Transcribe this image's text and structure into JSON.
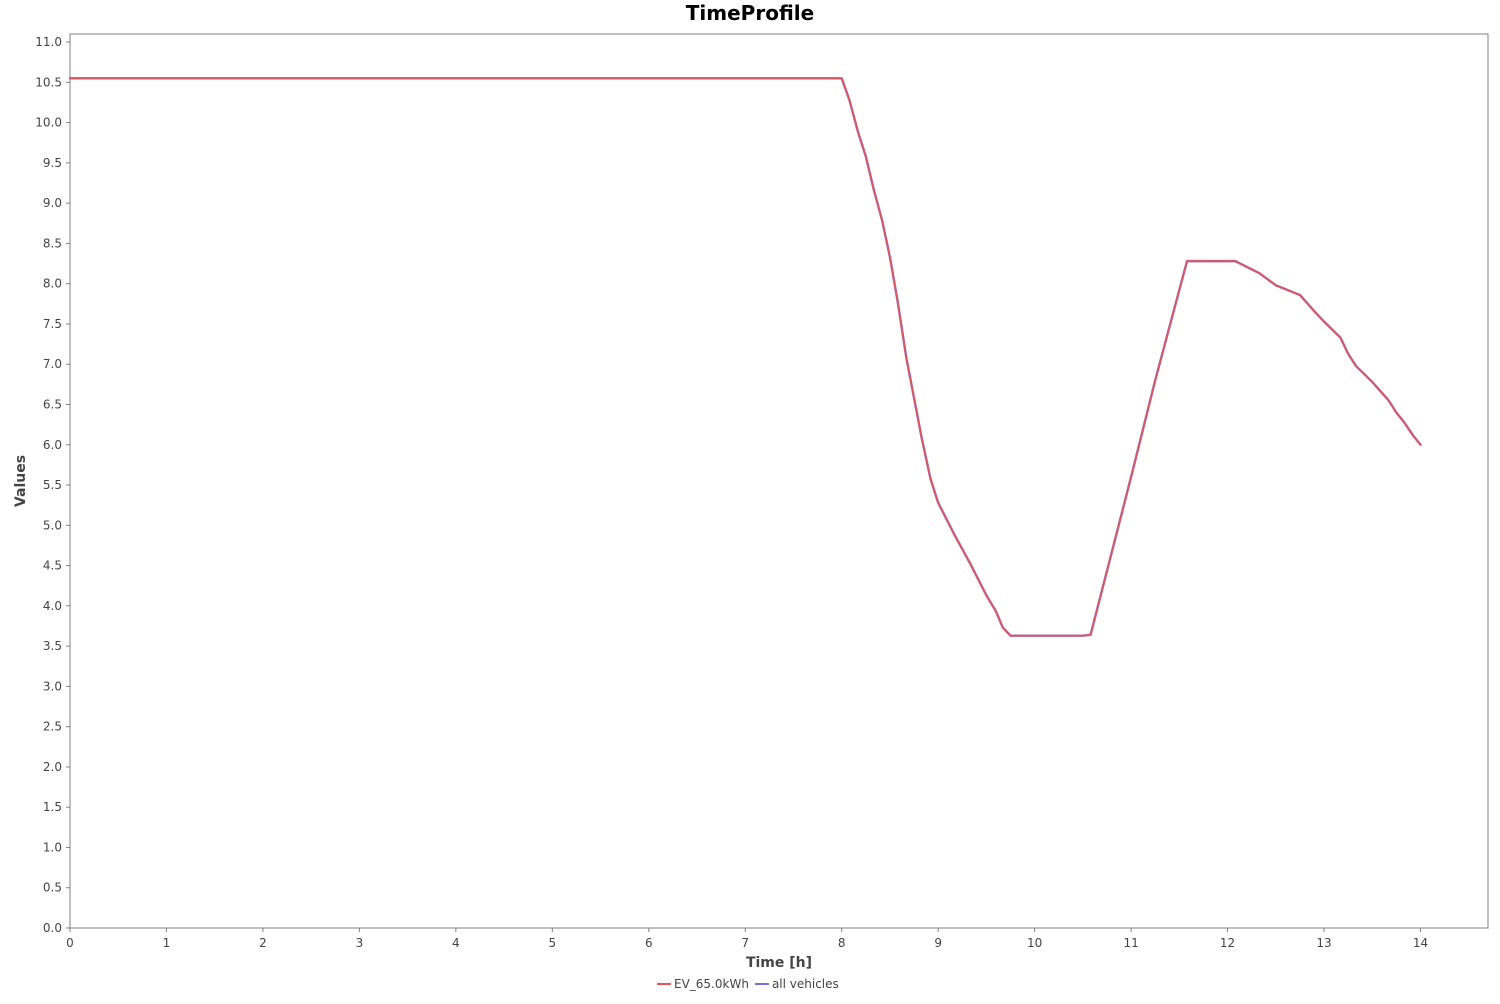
{
  "chart_data": {
    "type": "line",
    "title": "TimeProfile",
    "xlabel": "Time [h]",
    "ylabel": "Values",
    "xlim": [
      0,
      14.7
    ],
    "ylim": [
      0,
      11.1
    ],
    "xticks": [
      0,
      1,
      2,
      3,
      4,
      5,
      6,
      7,
      8,
      9,
      10,
      11,
      12,
      13,
      14
    ],
    "yticks": [
      0.0,
      0.5,
      1.0,
      1.5,
      2.0,
      2.5,
      3.0,
      3.5,
      4.0,
      4.5,
      5.0,
      5.5,
      6.0,
      6.5,
      7.0,
      7.5,
      8.0,
      8.5,
      9.0,
      9.5,
      10.0,
      10.5,
      11.0
    ],
    "grid": false,
    "legend_position": "bottom-center",
    "series": [
      {
        "name": "EV_65.0kWh",
        "color": "#e8564e",
        "x": [
          0,
          8.0,
          8.08,
          8.17,
          8.25,
          8.33,
          8.42,
          8.5,
          8.58,
          8.67,
          8.75,
          8.83,
          8.92,
          9.0,
          9.17,
          9.33,
          9.5,
          9.6,
          9.67,
          9.75,
          10.0,
          10.25,
          10.5,
          10.58,
          11.0,
          11.25,
          11.58,
          11.75,
          12.08,
          12.33,
          12.5,
          12.75,
          12.92,
          13.0,
          13.17,
          13.25,
          13.33,
          13.5,
          13.67,
          13.75,
          13.83,
          13.92,
          14.0
        ],
        "y": [
          10.55,
          10.55,
          10.28,
          9.88,
          9.58,
          9.18,
          8.78,
          8.33,
          7.78,
          7.08,
          6.58,
          6.08,
          5.58,
          5.28,
          4.88,
          4.53,
          4.13,
          3.93,
          3.73,
          3.63,
          3.63,
          3.63,
          3.63,
          3.64,
          5.6,
          6.8,
          8.28,
          8.28,
          8.28,
          8.13,
          7.98,
          7.86,
          7.63,
          7.53,
          7.33,
          7.13,
          6.98,
          6.78,
          6.55,
          6.4,
          6.28,
          6.12,
          6.0
        ]
      },
      {
        "name": "all vehicles",
        "color": "#7b6fe0",
        "x": [
          0,
          8.0,
          8.08,
          8.17,
          8.25,
          8.33,
          8.42,
          8.5,
          8.58,
          8.67,
          8.75,
          8.83,
          8.92,
          9.0,
          9.17,
          9.33,
          9.5,
          9.6,
          9.67,
          9.75,
          10.0,
          10.25,
          10.5,
          10.58,
          11.0,
          11.25,
          11.58,
          11.75,
          12.08,
          12.33,
          12.5,
          12.75,
          12.92,
          13.0,
          13.17,
          13.25,
          13.33,
          13.5,
          13.67,
          13.75,
          13.83,
          13.92,
          14.0
        ],
        "y": [
          10.55,
          10.55,
          10.28,
          9.88,
          9.58,
          9.18,
          8.78,
          8.33,
          7.78,
          7.08,
          6.58,
          6.08,
          5.58,
          5.28,
          4.88,
          4.53,
          4.13,
          3.93,
          3.73,
          3.63,
          3.63,
          3.63,
          3.63,
          3.64,
          5.6,
          6.8,
          8.28,
          8.28,
          8.28,
          8.13,
          7.98,
          7.86,
          7.63,
          7.53,
          7.33,
          7.13,
          6.98,
          6.78,
          6.55,
          6.4,
          6.28,
          6.12,
          6.0
        ]
      }
    ]
  }
}
